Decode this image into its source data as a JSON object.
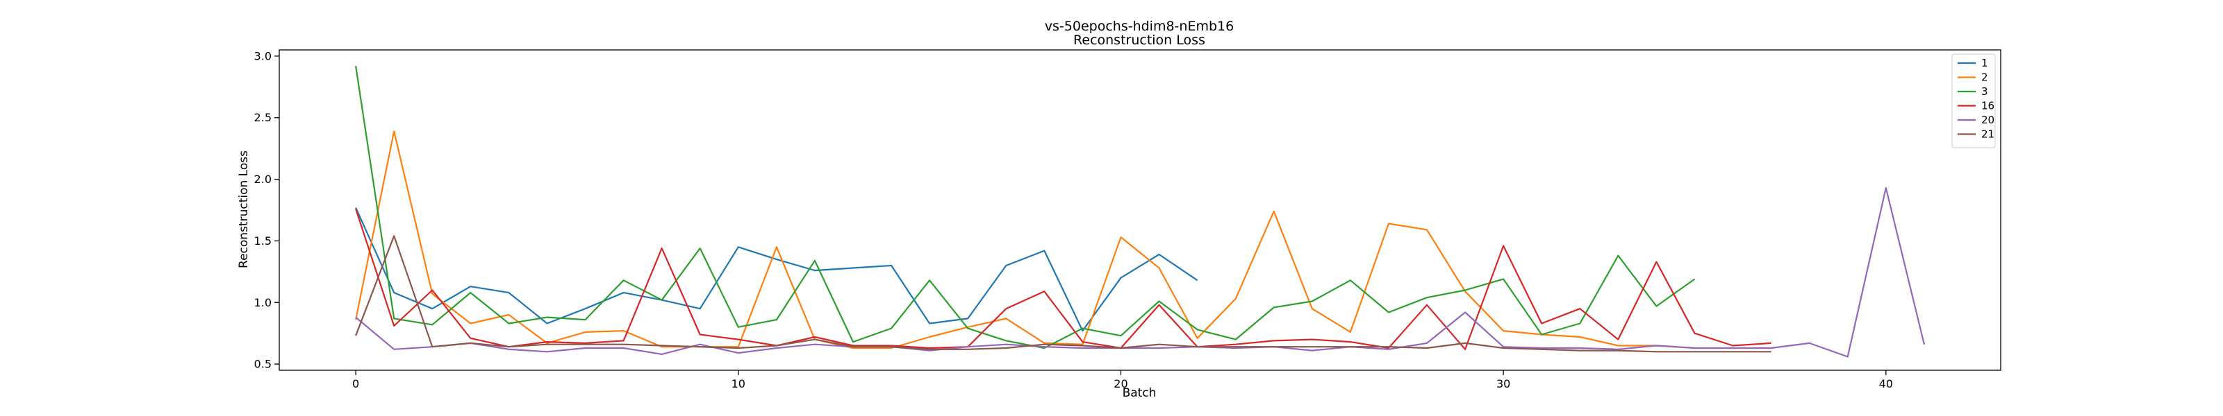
{
  "chart_data": {
    "type": "line",
    "title": "vs-50epochs-hdim8-nEmb16",
    "subtitle": "Reconstruction Loss",
    "xlabel": "Batch",
    "ylabel": "Reconstruction Loss",
    "xlim": [
      -2,
      43
    ],
    "ylim": [
      0.45,
      3.05
    ],
    "xticks": [
      0,
      10,
      20,
      30,
      40
    ],
    "yticks": [
      0.5,
      1.0,
      1.5,
      2.0,
      2.5,
      3.0
    ],
    "ytick_labels": [
      "0.5",
      "1.0",
      "1.5",
      "2.0",
      "2.5",
      "3.0"
    ],
    "grid": false,
    "legend_position": "top-right",
    "series": [
      {
        "name": "1",
        "color": "#1f77b4",
        "values": [
          1.77,
          1.08,
          0.95,
          1.13,
          1.08,
          0.83,
          0.95,
          1.08,
          1.02,
          0.95,
          1.45,
          1.35,
          1.26,
          1.28,
          1.3,
          0.83,
          0.87,
          1.3,
          1.42,
          0.77,
          1.2,
          1.39,
          1.18
        ]
      },
      {
        "name": "2",
        "color": "#ff7f0e",
        "values": [
          0.86,
          2.39,
          1.07,
          0.83,
          0.9,
          0.67,
          0.76,
          0.77,
          0.64,
          0.64,
          0.64,
          1.45,
          0.7,
          0.63,
          0.63,
          0.72,
          0.8,
          0.87,
          0.67,
          0.66,
          1.53,
          1.28,
          0.71,
          1.03,
          1.74,
          0.95,
          0.76,
          1.64,
          1.59,
          1.09,
          0.77,
          0.74,
          0.72,
          0.65,
          0.65,
          0.63
        ]
      },
      {
        "name": "3",
        "color": "#2ca02c",
        "values": [
          2.92,
          0.87,
          0.82,
          1.08,
          0.83,
          0.88,
          0.86,
          1.18,
          1.02,
          1.44,
          0.8,
          0.86,
          1.34,
          0.68,
          0.79,
          1.18,
          0.79,
          0.69,
          0.63,
          0.79,
          0.73,
          1.01,
          0.78,
          0.7,
          0.96,
          1.01,
          1.18,
          0.92,
          1.04,
          1.1,
          1.19,
          0.74,
          0.83,
          1.38,
          0.97,
          1.19
        ]
      },
      {
        "name": "16",
        "color": "#d62728",
        "values": [
          1.76,
          0.81,
          1.1,
          0.71,
          0.64,
          0.68,
          0.67,
          0.69,
          1.44,
          0.74,
          0.7,
          0.65,
          0.72,
          0.65,
          0.65,
          0.63,
          0.64,
          0.95,
          1.09,
          0.68,
          0.63,
          0.98,
          0.64,
          0.66,
          0.69,
          0.7,
          0.68,
          0.63,
          0.98,
          0.62,
          1.46,
          0.83,
          0.95,
          0.7,
          1.33,
          0.75,
          0.65,
          0.67
        ]
      },
      {
        "name": "20",
        "color": "#9467bd",
        "values": [
          0.88,
          0.62,
          0.64,
          0.67,
          0.62,
          0.6,
          0.63,
          0.63,
          0.58,
          0.66,
          0.59,
          0.63,
          0.66,
          0.64,
          0.64,
          0.61,
          0.64,
          0.66,
          0.64,
          0.63,
          0.63,
          0.63,
          0.64,
          0.63,
          0.64,
          0.61,
          0.64,
          0.62,
          0.67,
          0.92,
          0.64,
          0.63,
          0.63,
          0.62,
          0.65,
          0.63,
          0.63,
          0.63,
          0.67,
          0.56,
          1.93,
          0.66
        ]
      },
      {
        "name": "21",
        "color": "#8c564b",
        "values": [
          0.73,
          1.54,
          0.64,
          0.67,
          0.64,
          0.66,
          0.66,
          0.66,
          0.65,
          0.64,
          0.63,
          0.65,
          0.7,
          0.64,
          0.64,
          0.62,
          0.62,
          0.63,
          0.66,
          0.65,
          0.63,
          0.66,
          0.64,
          0.64,
          0.64,
          0.64,
          0.64,
          0.64,
          0.63,
          0.67,
          0.63,
          0.62,
          0.61,
          0.61,
          0.6,
          0.6,
          0.6,
          0.6
        ]
      }
    ]
  }
}
